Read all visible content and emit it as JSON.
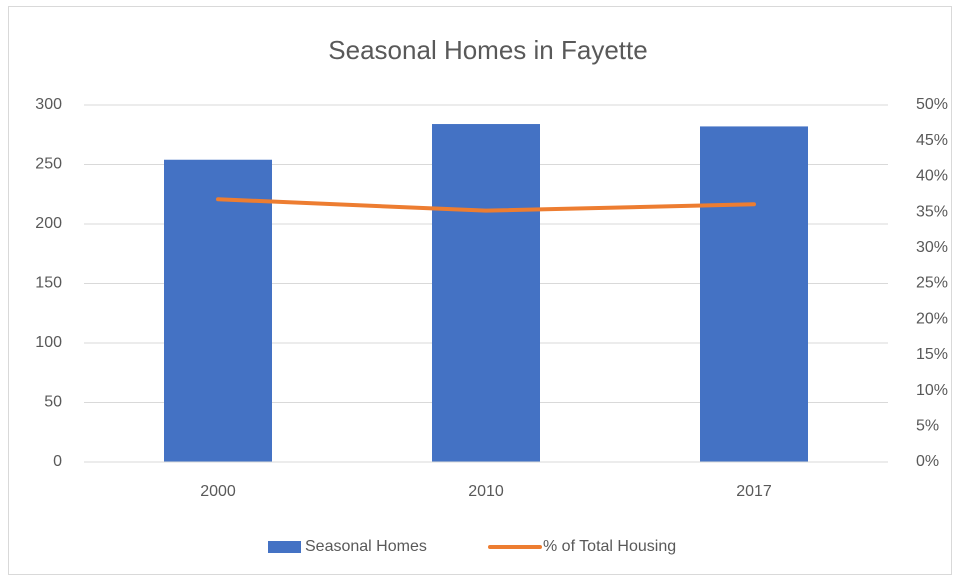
{
  "chart_data": {
    "type": "bar",
    "title": "Seasonal Homes in Fayette",
    "categories": [
      "2000",
      "2010",
      "2017"
    ],
    "series": [
      {
        "name": "Seasonal Homes",
        "type": "bar",
        "color": "#4472c4",
        "values": [
          254,
          284,
          282
        ]
      },
      {
        "name": "% of Total Housing",
        "type": "line",
        "axis": "y2",
        "color": "#ed7d31",
        "values": [
          36.8,
          35.2,
          36.1
        ]
      }
    ],
    "ylim": [
      0,
      300
    ],
    "yticks": [
      0,
      50,
      100,
      150,
      200,
      250,
      300
    ],
    "y2lim": [
      0,
      50
    ],
    "y2ticks": [
      {
        "value": 0,
        "label": "0%"
      },
      {
        "value": 5,
        "label": "5%"
      },
      {
        "value": 10,
        "label": "10%"
      },
      {
        "value": 15,
        "label": "15%"
      },
      {
        "value": 20,
        "label": "20%"
      },
      {
        "value": 25,
        "label": "25%"
      },
      {
        "value": 30,
        "label": "30%"
      },
      {
        "value": 35,
        "label": "35%"
      },
      {
        "value": 40,
        "label": "40%"
      },
      {
        "value": 45,
        "label": "45%"
      },
      {
        "value": 50,
        "label": "50%"
      }
    ],
    "grid": true,
    "legend": "bottom"
  }
}
